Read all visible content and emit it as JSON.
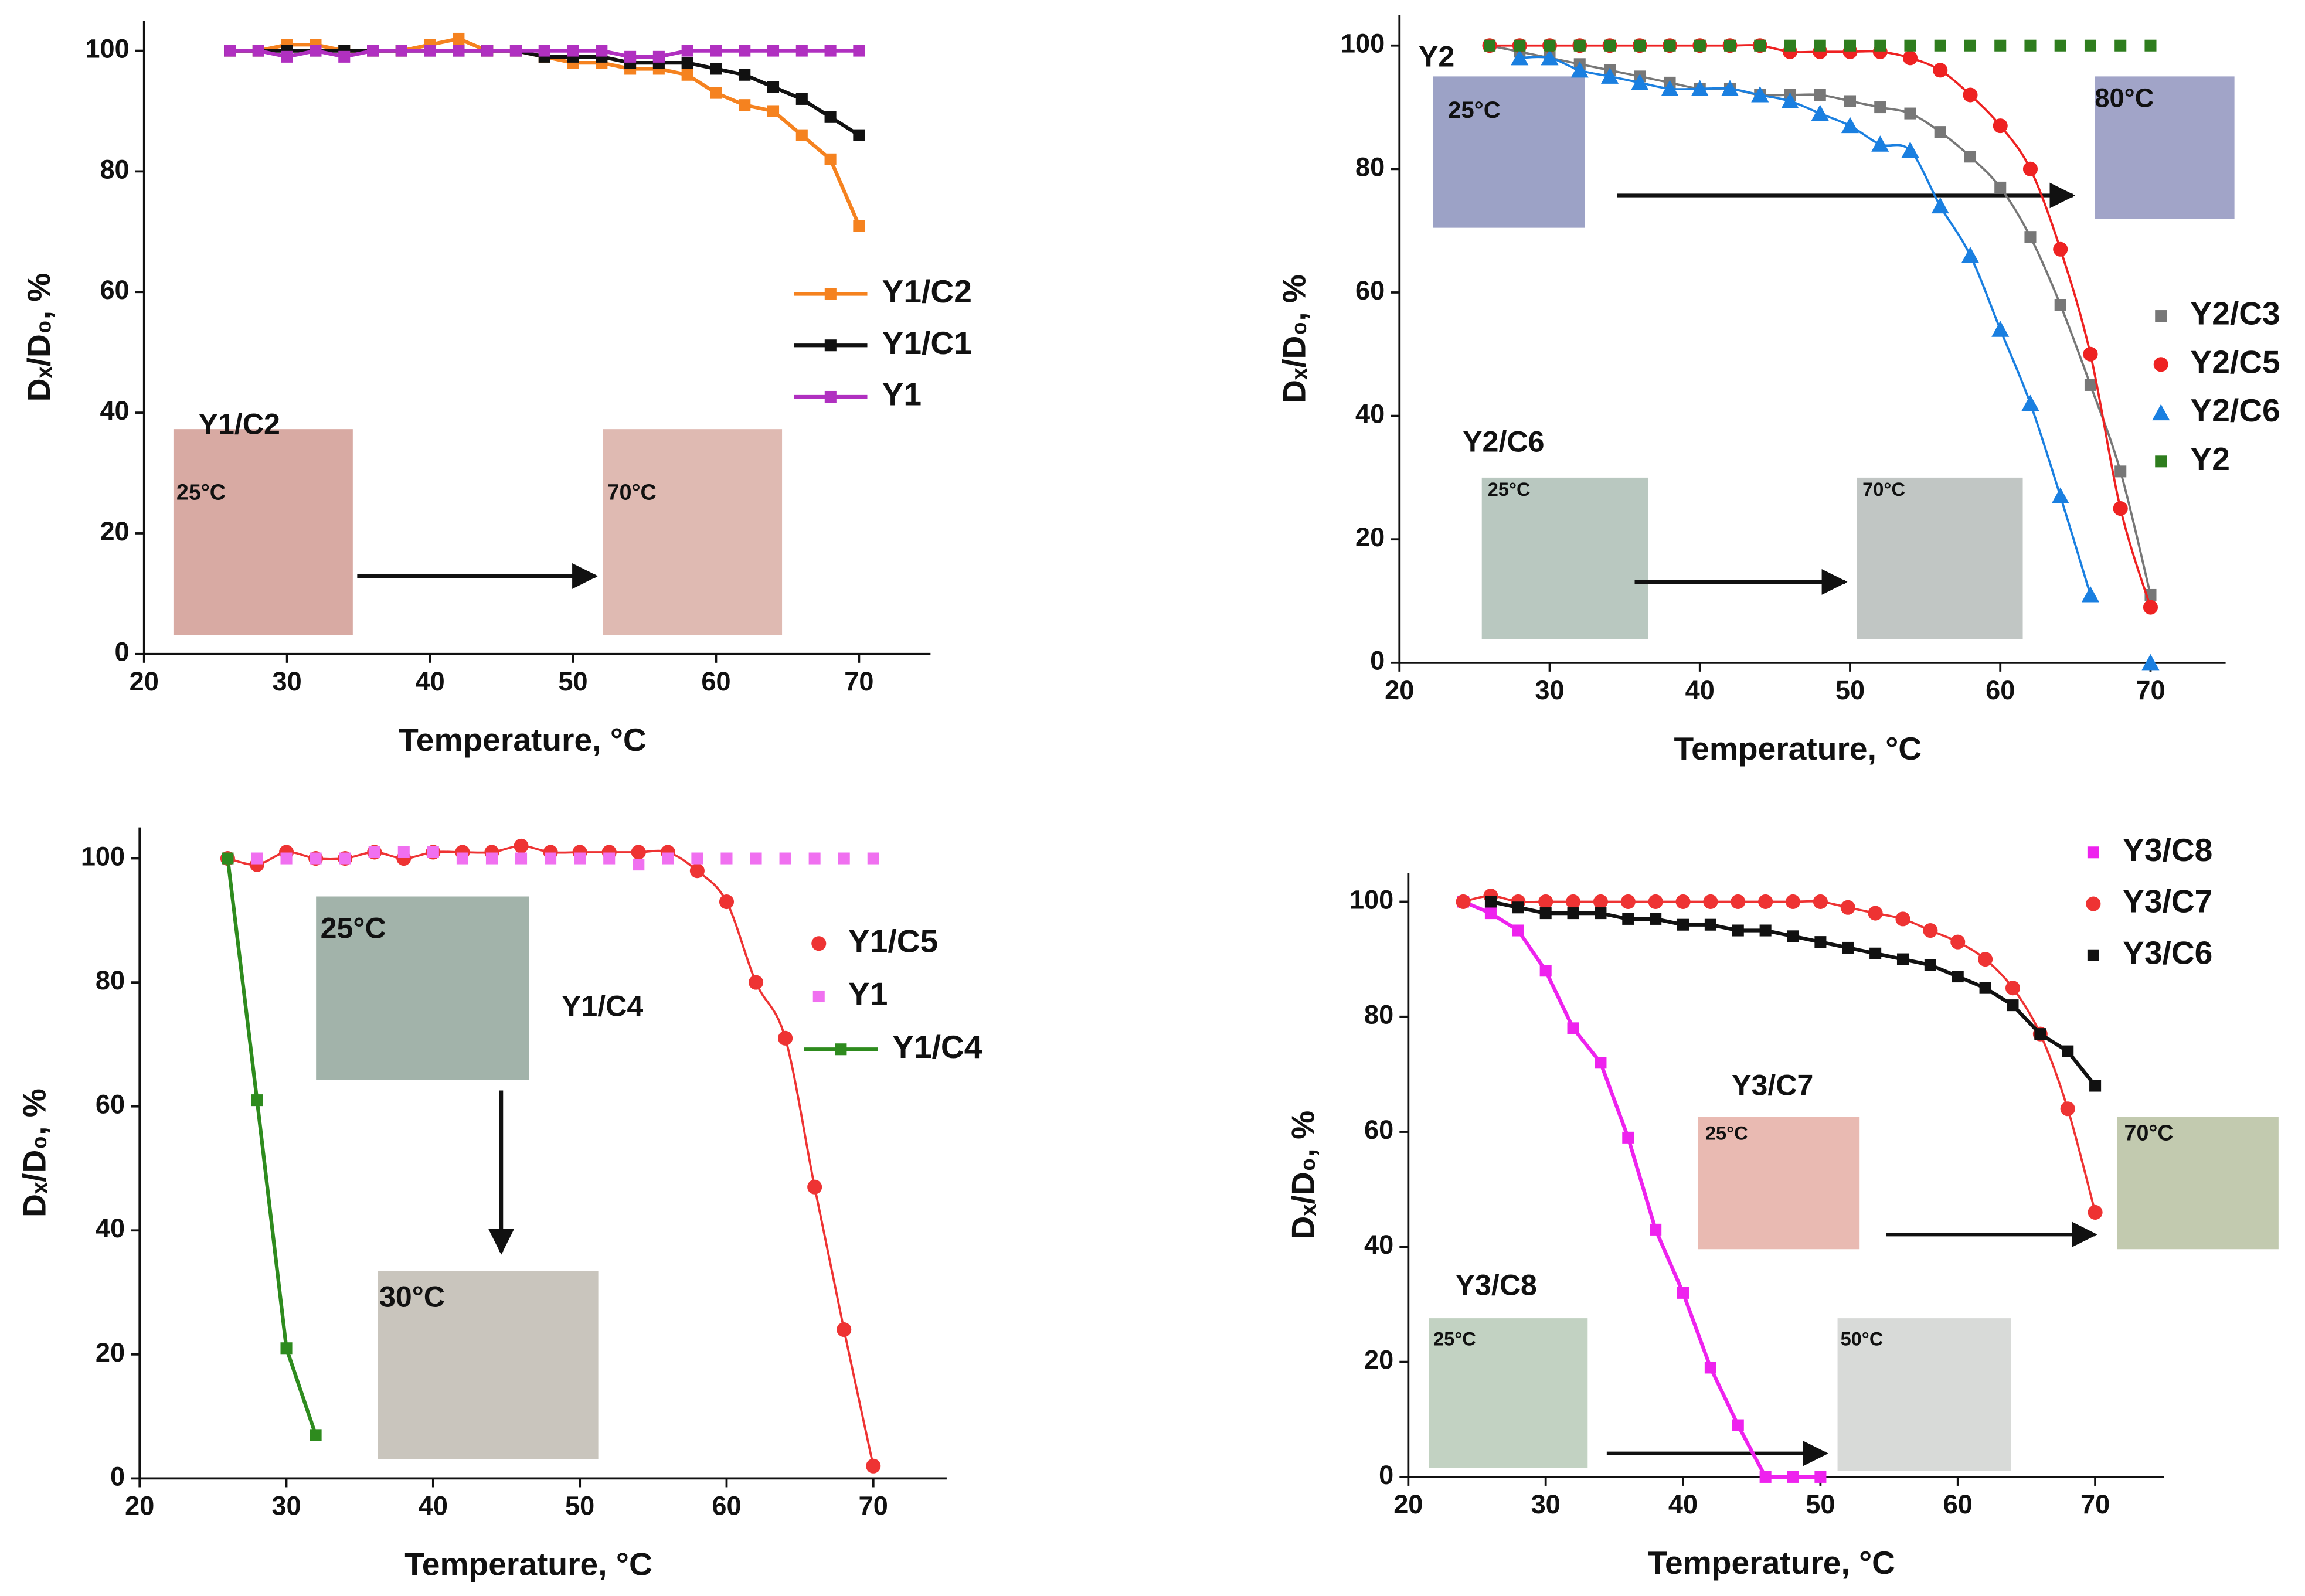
{
  "chart_data": [
    {
      "type": "scatter",
      "xlabel": "Temperature, °C",
      "ylabel": "Dₓ/D₀, %",
      "xlim": [
        20,
        75
      ],
      "ylim": [
        0,
        105
      ],
      "xticks": [
        20,
        30,
        40,
        50,
        60,
        70
      ],
      "yticks": [
        0,
        20,
        40,
        60,
        80,
        100
      ],
      "annotations": [
        "Y1/C2",
        "25°C",
        "70°C"
      ],
      "series": [
        {
          "name": "Y1/C2",
          "color": "#f5821f",
          "marker": "square",
          "line": "straight",
          "x": [
            26,
            28,
            30,
            32,
            34,
            36,
            38,
            40,
            42,
            44,
            46,
            48,
            50,
            52,
            54,
            56,
            58,
            60,
            62,
            64,
            66,
            68,
            70
          ],
          "values": [
            100,
            100,
            101,
            101,
            100,
            100,
            100,
            101,
            102,
            100,
            100,
            99,
            98,
            98,
            97,
            97,
            96,
            93,
            91,
            90,
            86,
            82,
            71
          ]
        },
        {
          "name": "Y1/C1",
          "color": "#111111",
          "marker": "square",
          "line": "straight",
          "x": [
            26,
            28,
            30,
            32,
            34,
            36,
            38,
            40,
            42,
            44,
            46,
            48,
            50,
            52,
            54,
            56,
            58,
            60,
            62,
            64,
            66,
            68,
            70
          ],
          "values": [
            100,
            100,
            100,
            100,
            100,
            100,
            100,
            100,
            100,
            100,
            100,
            99,
            99,
            99,
            98,
            98,
            98,
            97,
            96,
            94,
            92,
            89,
            86
          ]
        },
        {
          "name": "Y1",
          "color": "#b030c0",
          "marker": "square",
          "line": "straight",
          "x": [
            26,
            28,
            30,
            32,
            34,
            36,
            38,
            40,
            42,
            44,
            46,
            48,
            50,
            52,
            54,
            56,
            58,
            60,
            62,
            64,
            66,
            68,
            70
          ],
          "values": [
            100,
            100,
            99,
            100,
            99,
            100,
            100,
            100,
            100,
            100,
            100,
            100,
            100,
            100,
            99,
            99,
            100,
            100,
            100,
            100,
            100,
            100,
            100
          ]
        }
      ]
    },
    {
      "type": "scatter",
      "xlabel": "Temperature, °C",
      "ylabel": "Dₓ/D₀, %",
      "xlim": [
        20,
        75
      ],
      "ylim": [
        0,
        105
      ],
      "xticks": [
        20,
        30,
        40,
        50,
        60,
        70
      ],
      "yticks": [
        0,
        20,
        40,
        60,
        80,
        100
      ],
      "annotations": [
        "Y2",
        "25°C",
        "80°C",
        "Y2/C6",
        "25°C",
        "70°C"
      ],
      "series": [
        {
          "name": "Y2/C3",
          "color": "#777777",
          "marker": "square",
          "line": "smooth",
          "x": [
            26,
            28,
            30,
            32,
            34,
            36,
            38,
            40,
            42,
            44,
            46,
            48,
            50,
            52,
            54,
            56,
            58,
            60,
            62,
            64,
            66,
            68,
            70
          ],
          "values": [
            100,
            99,
            98,
            97,
            96,
            95,
            94,
            93,
            93,
            92,
            92,
            92,
            91,
            90,
            89,
            86,
            82,
            77,
            69,
            58,
            45,
            31,
            11
          ]
        },
        {
          "name": "Y2/C5",
          "color": "#ee2222",
          "marker": "circle",
          "line": "smooth",
          "x": [
            26,
            28,
            30,
            32,
            34,
            36,
            38,
            40,
            42,
            44,
            46,
            48,
            50,
            52,
            54,
            56,
            58,
            60,
            62,
            64,
            66,
            68,
            70
          ],
          "values": [
            100,
            100,
            100,
            100,
            100,
            100,
            100,
            100,
            100,
            100,
            99,
            99,
            99,
            99,
            98,
            96,
            92,
            87,
            80,
            67,
            50,
            25,
            9
          ]
        },
        {
          "name": "Y2/C6",
          "color": "#1a7fe0",
          "marker": "triangle",
          "line": "smooth",
          "x": [
            28,
            30,
            32,
            34,
            36,
            38,
            40,
            42,
            44,
            46,
            48,
            50,
            52,
            54,
            56,
            58,
            60,
            62,
            64,
            66,
            68,
            70
          ],
          "values": [
            98,
            98,
            96,
            95,
            94,
            93,
            93,
            93,
            92,
            91,
            89,
            87,
            84,
            83,
            74,
            66,
            54,
            42,
            27,
            11,
            null,
            0
          ]
        },
        {
          "name": "Y2",
          "color": "#2e7d1e",
          "marker": "square",
          "x": [
            26,
            28,
            30,
            32,
            34,
            36,
            38,
            40,
            42,
            44,
            46,
            48,
            50,
            52,
            54,
            56,
            58,
            60,
            62,
            64,
            66,
            68,
            70
          ],
          "values": [
            100,
            100,
            100,
            100,
            100,
            100,
            100,
            100,
            100,
            100,
            100,
            100,
            100,
            100,
            100,
            100,
            100,
            100,
            100,
            100,
            100,
            100,
            100
          ]
        }
      ]
    },
    {
      "type": "scatter",
      "xlabel": "Temperature, °C",
      "ylabel": "Dₓ/D₀, %",
      "xlim": [
        20,
        75
      ],
      "ylim": [
        0,
        105
      ],
      "xticks": [
        20,
        30,
        40,
        50,
        60,
        70
      ],
      "yticks": [
        0,
        20,
        40,
        60,
        80,
        100
      ],
      "annotations": [
        "25°C",
        "Y1/C4",
        "30°C"
      ],
      "series": [
        {
          "name": "Y1/C5",
          "color": "#ee3333",
          "marker": "circle",
          "line": "smooth",
          "x": [
            26,
            28,
            30,
            32,
            34,
            36,
            38,
            40,
            42,
            44,
            46,
            48,
            50,
            52,
            54,
            56,
            58,
            60,
            62,
            64,
            66,
            68,
            70
          ],
          "values": [
            100,
            99,
            101,
            100,
            100,
            101,
            100,
            101,
            101,
            101,
            102,
            101,
            101,
            101,
            101,
            101,
            98,
            93,
            80,
            71,
            47,
            24,
            2
          ]
        },
        {
          "name": "Y1",
          "color": "#f070f0",
          "marker": "square",
          "x": [
            26,
            28,
            30,
            32,
            34,
            36,
            38,
            40,
            42,
            44,
            46,
            48,
            50,
            52,
            54,
            56,
            58,
            60,
            62,
            64,
            66,
            68,
            70
          ],
          "values": [
            100,
            100,
            100,
            100,
            100,
            101,
            101,
            101,
            100,
            100,
            100,
            100,
            100,
            100,
            99,
            100,
            100,
            100,
            100,
            100,
            100,
            100,
            100
          ]
        },
        {
          "name": "Y1/C4",
          "color": "#2e8b1e",
          "marker": "square",
          "line": "straight",
          "x": [
            26,
            28,
            30,
            32
          ],
          "values": [
            100,
            61,
            21,
            7
          ]
        }
      ]
    },
    {
      "type": "scatter",
      "xlabel": "Temperature, °C",
      "ylabel": "Dₓ/D₀, %",
      "xlim": [
        20,
        75
      ],
      "ylim": [
        0,
        105
      ],
      "xticks": [
        20,
        30,
        40,
        50,
        60,
        70
      ],
      "yticks": [
        0,
        20,
        40,
        60,
        80,
        100
      ],
      "legend_lines": false,
      "annotations": [
        "Y3/C7",
        "25°C",
        "70°C",
        "Y3/C8",
        "25°C",
        "50°C"
      ],
      "series": [
        {
          "name": "Y3/C8",
          "color": "#ee22ee",
          "marker": "square",
          "line": "straight",
          "x": [
            24,
            26,
            28,
            30,
            32,
            34,
            36,
            38,
            40,
            42,
            44,
            46,
            48,
            50
          ],
          "values": [
            100,
            98,
            95,
            88,
            78,
            72,
            59,
            43,
            32,
            19,
            9,
            0,
            0,
            0
          ]
        },
        {
          "name": "Y3/C7",
          "color": "#ee3333",
          "marker": "circle",
          "line": "smooth",
          "x": [
            24,
            26,
            28,
            30,
            32,
            34,
            36,
            38,
            40,
            42,
            44,
            46,
            48,
            50,
            52,
            54,
            56,
            58,
            60,
            62,
            64,
            66,
            68,
            70
          ],
          "values": [
            100,
            101,
            100,
            100,
            100,
            100,
            100,
            100,
            100,
            100,
            100,
            100,
            100,
            100,
            99,
            98,
            97,
            95,
            93,
            90,
            85,
            77,
            64,
            46
          ]
        },
        {
          "name": "Y3/C6",
          "color": "#111111",
          "marker": "square",
          "line": "straight",
          "x": [
            26,
            28,
            30,
            32,
            34,
            36,
            38,
            40,
            42,
            44,
            46,
            48,
            50,
            52,
            54,
            56,
            58,
            60,
            62,
            64,
            66,
            68,
            70
          ],
          "values": [
            100,
            99,
            98,
            98,
            98,
            97,
            97,
            96,
            96,
            95,
            95,
            94,
            93,
            92,
            91,
            90,
            89,
            87,
            85,
            82,
            77,
            74,
            68
          ]
        }
      ]
    }
  ]
}
